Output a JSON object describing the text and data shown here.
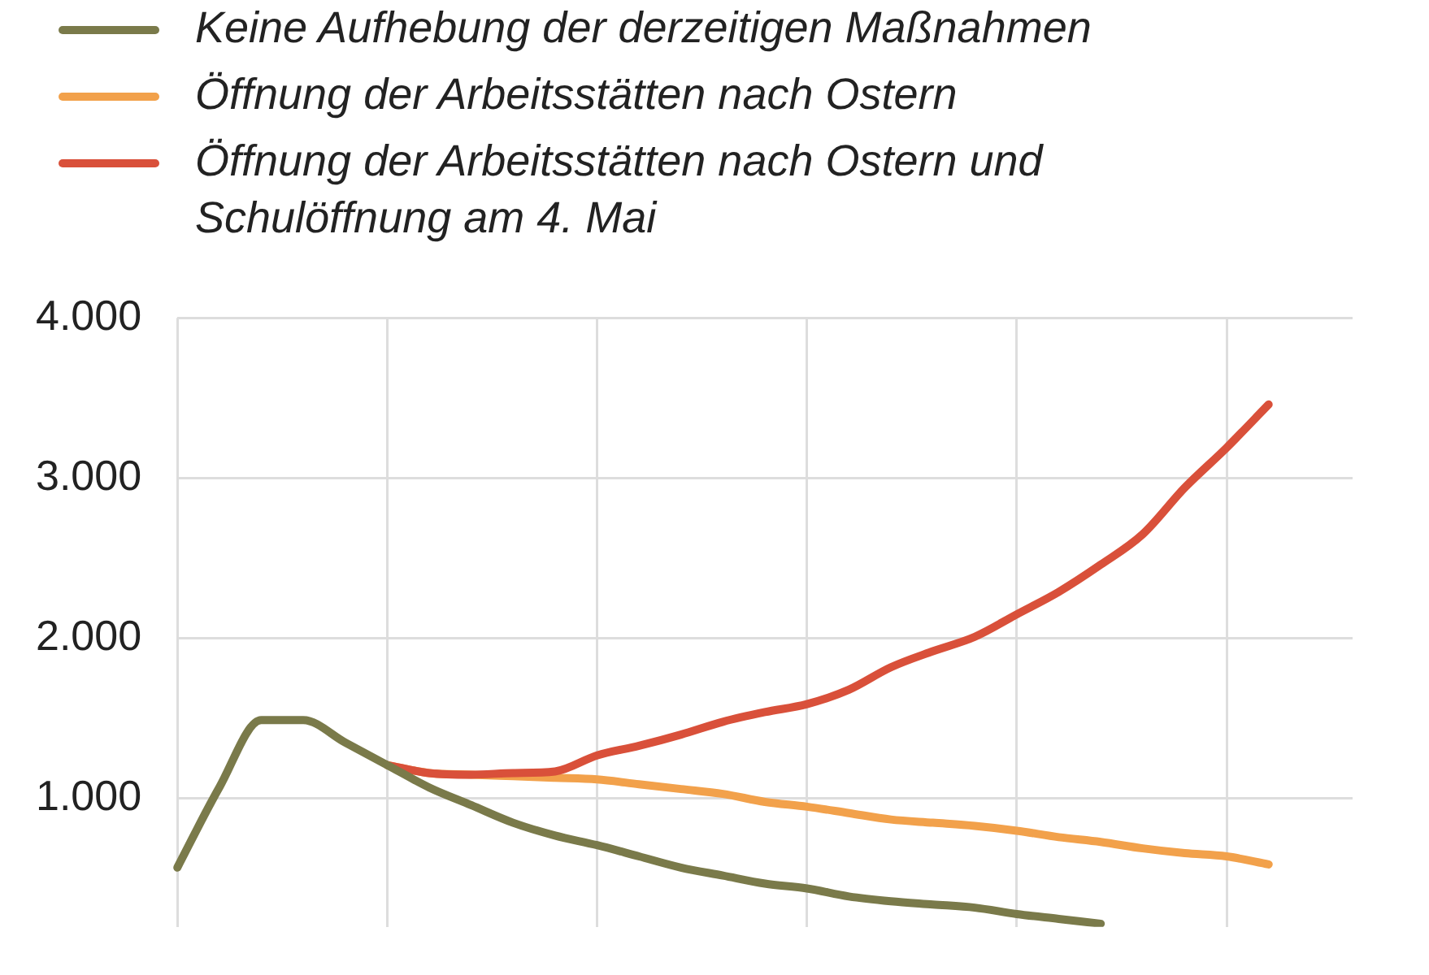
{
  "chart_data": {
    "type": "line",
    "categories": [
      null,
      null,
      null,
      null,
      null,
      null,
      null,
      null,
      null,
      null,
      null,
      null,
      null,
      null,
      null,
      null,
      null,
      null,
      null,
      null,
      null,
      null,
      null,
      null,
      null,
      null,
      null,
      null,
      null
    ],
    "series": [
      {
        "name": "Keine Aufhebung der derzeitigen Maßnahmen",
        "color": "#7a7a4a",
        "values": [
          570,
          1070,
          1490,
          1490,
          1350,
          1210,
          1070,
          960,
          850,
          770,
          710,
          640,
          570,
          520,
          470,
          440,
          390,
          360,
          340,
          320,
          280,
          250,
          220,
          null,
          null,
          null,
          null,
          null,
          null
        ]
      },
      {
        "name": "Öffnung der Arbeitsstätten nach Ostern",
        "color": "#f2a14b",
        "values": [
          null,
          null,
          null,
          null,
          null,
          1210,
          1160,
          1150,
          1140,
          1130,
          1120,
          1090,
          1060,
          1030,
          980,
          950,
          910,
          870,
          850,
          830,
          800,
          760,
          730,
          690,
          660,
          640,
          590,
          null,
          null
        ]
      },
      {
        "name": "Öffnung der Arbeitsstätten nach Ostern und Schulöffnung am 4. Mai",
        "color": "#d9503a",
        "values": [
          null,
          null,
          null,
          null,
          null,
          1210,
          1160,
          1150,
          1160,
          1170,
          1270,
          1330,
          1400,
          1480,
          1540,
          1590,
          1680,
          1820,
          1920,
          2010,
          2150,
          2290,
          2460,
          2650,
          2940,
          3190,
          3460,
          null,
          null
        ]
      }
    ],
    "ylim": [
      200,
      4000
    ],
    "yticks": [
      {
        "value": 1000,
        "label": "1.000"
      },
      {
        "value": 2000,
        "label": "2.000"
      },
      {
        "value": 3000,
        "label": "3.000"
      },
      {
        "value": 4000,
        "label": "4.000"
      }
    ],
    "grid": true,
    "legend": "top left",
    "marker": "none",
    "line_style": "solid"
  }
}
